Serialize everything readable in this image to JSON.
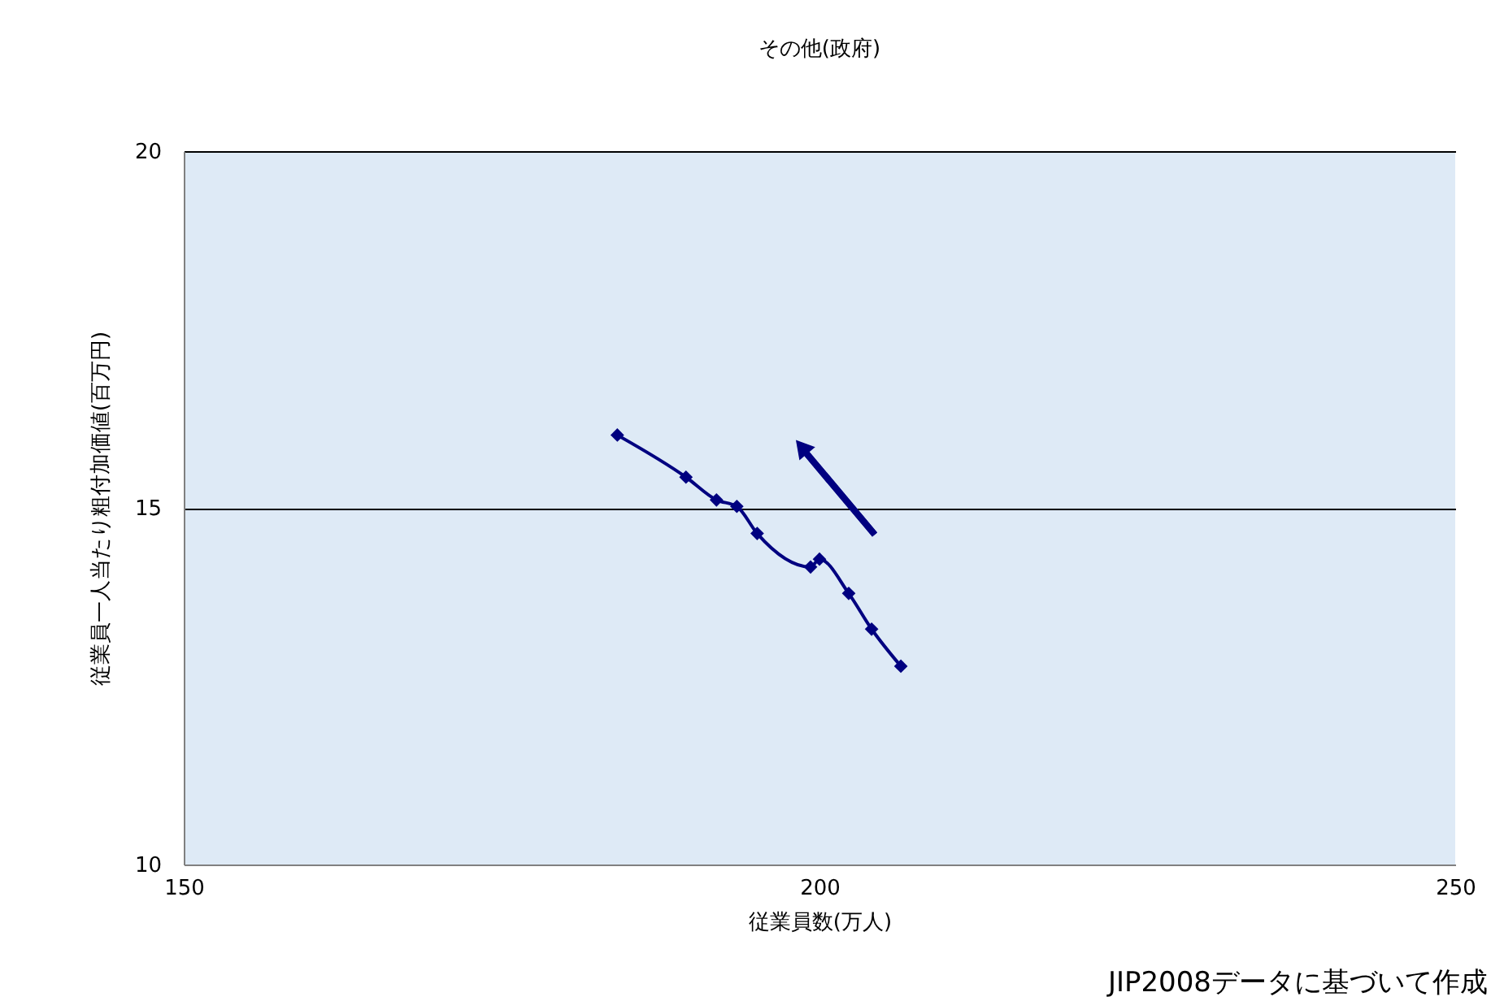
{
  "chart_data": {
    "type": "line",
    "title": "その他(政府)",
    "xlabel": "従業員数(万人)",
    "ylabel": "従業員一人当たり粗付加価値(百万円)",
    "x": [
      184.1,
      189.5,
      191.9,
      193.5,
      195.1,
      199.3,
      200.0,
      202.3,
      204.1,
      206.4
    ],
    "series": [
      {
        "color": "#000080",
        "values": [
          16.02,
          15.43,
          15.11,
          15.02,
          14.64,
          14.17,
          14.28,
          13.8,
          13.3,
          12.78
        ]
      }
    ],
    "xlim": [
      150,
      250
    ],
    "xticks": [
      150,
      200,
      250
    ],
    "ylim": [
      10,
      20
    ],
    "yticks": [
      10,
      15,
      20
    ],
    "grid": "y",
    "marker": "diamond",
    "line_style": "solid",
    "annotations": [
      "JIP2008データに基づいて作成"
    ]
  }
}
